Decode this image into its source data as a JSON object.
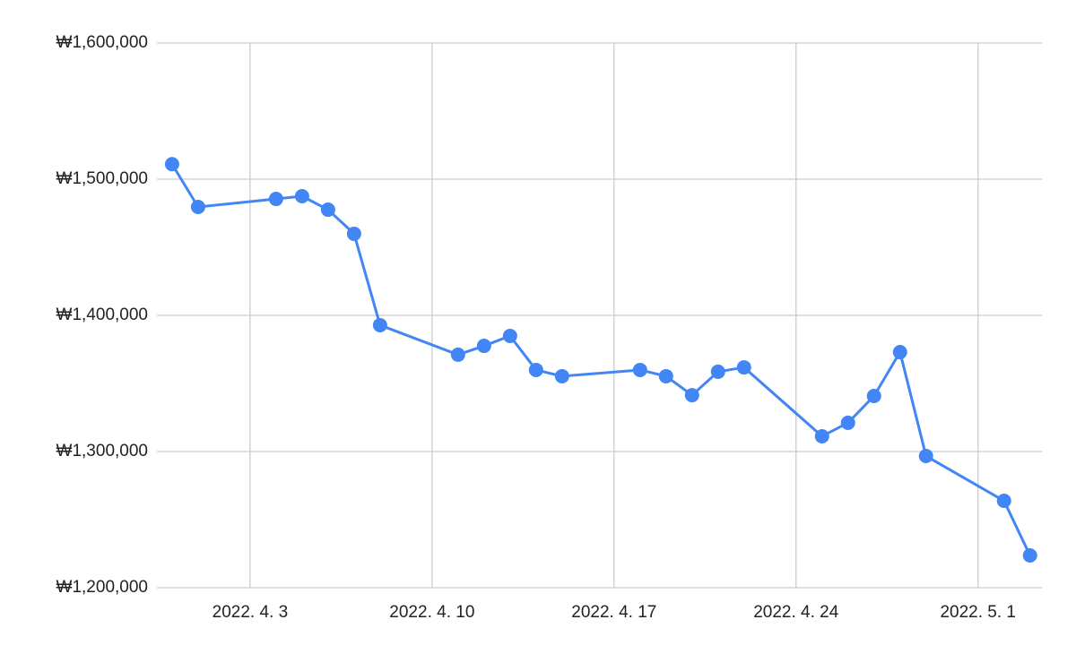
{
  "chart_data": {
    "type": "line",
    "color": "#4285f4",
    "grid": true,
    "x": [
      "2022-03-31",
      "2022-04-01",
      "2022-04-04",
      "2022-04-05",
      "2022-04-06",
      "2022-04-07",
      "2022-04-08",
      "2022-04-11",
      "2022-04-12",
      "2022-04-13",
      "2022-04-14",
      "2022-04-15",
      "2022-04-18",
      "2022-04-19",
      "2022-04-20",
      "2022-04-21",
      "2022-04-22",
      "2022-04-25",
      "2022-04-26",
      "2022-04-27",
      "2022-04-28",
      "2022-04-29",
      "2022-05-02",
      "2022-05-03"
    ],
    "values": [
      1511000,
      1479600,
      1485500,
      1487500,
      1477600,
      1459900,
      1392800,
      1371100,
      1377600,
      1384900,
      1359900,
      1355300,
      1359900,
      1355300,
      1341400,
      1358600,
      1361800,
      1311200,
      1321100,
      1340800,
      1373000,
      1296700,
      1263800,
      1223700
    ],
    "xlim": [
      "2022-03-30T10:00Z",
      "2022-05-03T11:00Z"
    ],
    "xticks": [
      {
        "value": "2022-04-03",
        "label": "2022. 4. 3"
      },
      {
        "value": "2022-04-10",
        "label": "2022. 4. 10"
      },
      {
        "value": "2022-04-17",
        "label": "2022. 4. 17"
      },
      {
        "value": "2022-04-24",
        "label": "2022. 4. 24"
      },
      {
        "value": "2022-05-01",
        "label": "2022. 5. 1"
      }
    ],
    "ylim": [
      1200000,
      1600000
    ],
    "yticks": [
      {
        "value": 1200000,
        "label": "₩1,200,000"
      },
      {
        "value": 1300000,
        "label": "₩1,300,000"
      },
      {
        "value": 1400000,
        "label": "₩1,400,000"
      },
      {
        "value": 1500000,
        "label": "₩1,500,000"
      },
      {
        "value": 1600000,
        "label": "₩1,600,000"
      }
    ]
  }
}
